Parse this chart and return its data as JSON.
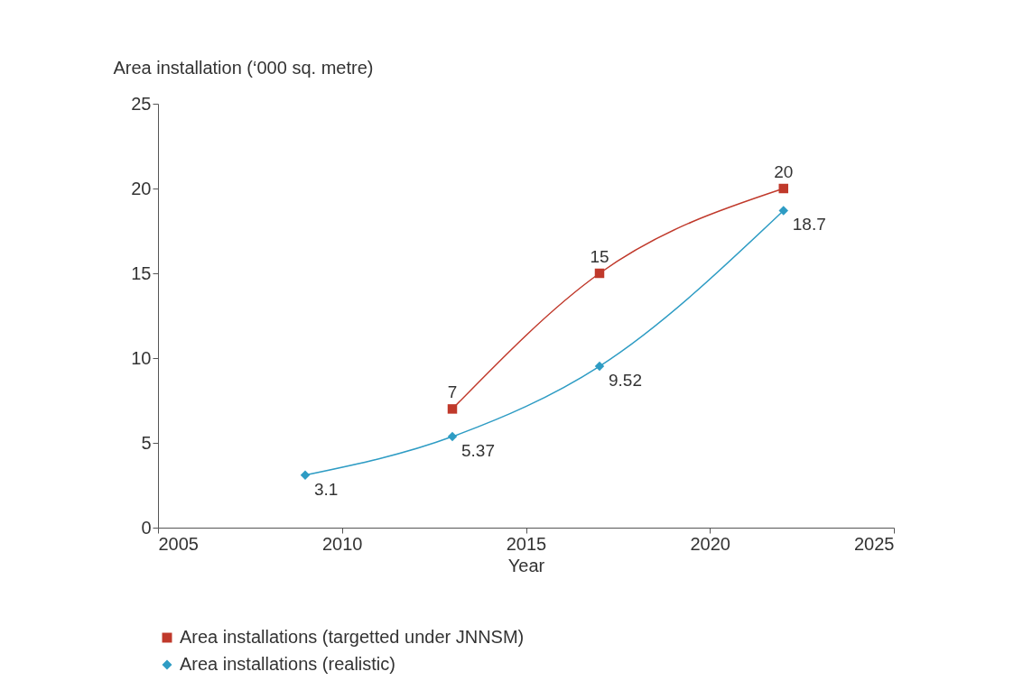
{
  "chart_data": {
    "type": "line",
    "ylabel": "Area installation (‘000 sq. metre)",
    "xlabel": "Year",
    "xlim": [
      2005,
      2025
    ],
    "xticks": [
      2005,
      2010,
      2015,
      2020,
      2025
    ],
    "ylim": [
      0,
      25
    ],
    "yticks": [
      0,
      5,
      10,
      15,
      20,
      25
    ],
    "grid": false,
    "legend": "bottom",
    "data_labels": true,
    "series": [
      {
        "name": "Area installations (targetted under JNNSM)",
        "color": "#c0392b",
        "marker": "square",
        "x": [
          2013,
          2017,
          2022
        ],
        "values": [
          7,
          15,
          20
        ]
      },
      {
        "name": "Area installations (realistic)",
        "color": "#2e9cc4",
        "marker": "diamond",
        "x": [
          2009,
          2013,
          2017,
          2022
        ],
        "values": [
          3.1,
          5.37,
          9.52,
          18.7
        ]
      }
    ]
  }
}
